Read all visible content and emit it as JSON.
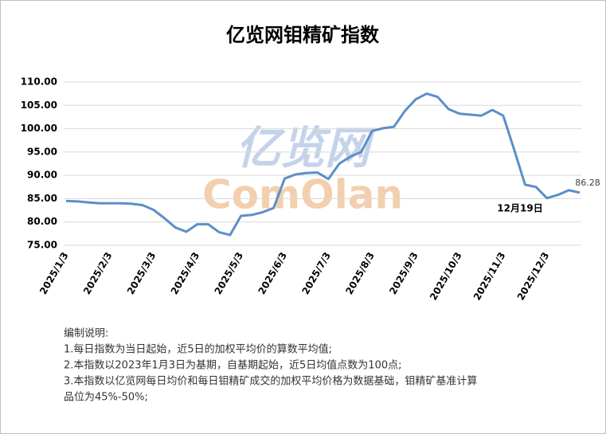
{
  "chart_data": {
    "type": "line",
    "title": "亿览网钼精矿指数",
    "categories": [
      "2025/1/3",
      null,
      null,
      null,
      "2025/2/3",
      null,
      null,
      null,
      "2025/3/3",
      null,
      null,
      null,
      "2025/4/3",
      null,
      null,
      null,
      "2025/5/3",
      null,
      null,
      null,
      "2025/6/3",
      null,
      null,
      null,
      "2025/7/3",
      null,
      null,
      null,
      "2025/8/3",
      null,
      null,
      null,
      "2025/9/3",
      null,
      null,
      null,
      "2025/10/3",
      null,
      null,
      null,
      "2025/11/3",
      null,
      null,
      null,
      "2025/12/3",
      null,
      null,
      null
    ],
    "series": [
      {
        "color": "#5b8fc9",
        "values": [
          84.5,
          84.4,
          84.2,
          84.0,
          84.0,
          84.0,
          83.9,
          83.6,
          82.6,
          80.8,
          78.8,
          77.9,
          79.5,
          79.5,
          77.8,
          77.2,
          81.3,
          81.5,
          82.1,
          83.0,
          89.3,
          90.2,
          90.5,
          90.6,
          89.2,
          92.5,
          94.0,
          95.0,
          99.5,
          100.1,
          100.4,
          103.8,
          106.3,
          107.5,
          106.8,
          104.2,
          103.2,
          103.0,
          102.8,
          104.0,
          102.8,
          95.5,
          88.0,
          87.5,
          85.1,
          85.8,
          86.8,
          86.28
        ]
      }
    ],
    "ylim": [
      75,
      110
    ],
    "yticks": [
      {
        "value": 75,
        "label": "75.00"
      },
      {
        "value": 80,
        "label": "80.00"
      },
      {
        "value": 85,
        "label": "85.00"
      },
      {
        "value": 90,
        "label": "90.00"
      },
      {
        "value": 95,
        "label": "95.00"
      },
      {
        "value": 100,
        "label": "100.00"
      },
      {
        "value": 105,
        "label": "105.00"
      },
      {
        "value": 110,
        "label": "110.00"
      }
    ],
    "grid": true,
    "annotation": "12月19日",
    "watermark": [
      "亿览网",
      "ComOlan"
    ],
    "notes": [
      "编制说明:",
      "1.每日指数为当日起始，近5日的加权平均价的算数平均值;",
      "2.本指数以2023年1月3日为基期，自基期起始，近5日均值点数为100点;",
      "3.本指数以亿览网每日均价和每日钼精矿成交的加权平均价格为数据基础，钼精矿基准计算",
      "品位为45%-50%;"
    ]
  }
}
